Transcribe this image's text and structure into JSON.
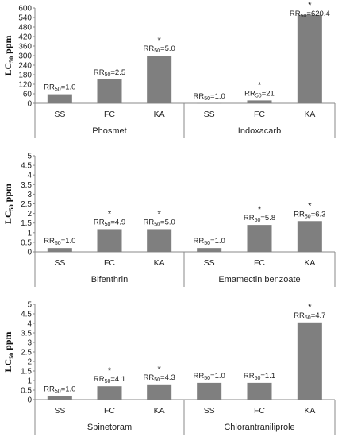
{
  "chart_data": [
    {
      "type": "bar",
      "ylabel": "LC50 ppm",
      "ylim": [
        0,
        600
      ],
      "yticks": [
        0,
        60,
        120,
        180,
        240,
        300,
        360,
        420,
        480,
        540,
        600
      ],
      "panels": [
        {
          "name": "Phosmet",
          "categories": [
            "SS",
            "FC",
            "KA"
          ],
          "values": [
            57,
            150,
            300
          ],
          "rr_labels": [
            "RR50=1.0",
            "RR50=2.5",
            "RR50=5.0"
          ],
          "significant": [
            false,
            false,
            true
          ]
        },
        {
          "name": "Indoxacarb",
          "categories": [
            "SS",
            "FC",
            "KA"
          ],
          "values": [
            1,
            18,
            556
          ],
          "rr_labels": [
            "RR50=1.0",
            "RR50=21",
            "RR50=620.4"
          ],
          "significant": [
            false,
            true,
            true
          ]
        }
      ]
    },
    {
      "type": "bar",
      "ylabel": "LC50 ppm",
      "ylim": [
        0,
        5
      ],
      "yticks": [
        0,
        0.5,
        1,
        1.5,
        2,
        2.5,
        3,
        3.5,
        4,
        4.5,
        5
      ],
      "panels": [
        {
          "name": "Bifenthrin",
          "categories": [
            "SS",
            "FC",
            "KA"
          ],
          "values": [
            0.2,
            1.18,
            1.18
          ],
          "rr_labels": [
            "RR50=1.0",
            "RR50=4.9",
            "RR50=5.0"
          ],
          "significant": [
            false,
            true,
            true
          ]
        },
        {
          "name": "Emamectin benzoate",
          "categories": [
            "SS",
            "FC",
            "KA"
          ],
          "values": [
            0.2,
            1.4,
            1.6
          ],
          "rr_labels": [
            "RR50=1.0",
            "RR50=5.8",
            "RR50=6.3"
          ],
          "significant": [
            false,
            true,
            true
          ]
        }
      ]
    },
    {
      "type": "bar",
      "ylabel": "LC50 ppm",
      "ylim": [
        0,
        5
      ],
      "yticks": [
        0,
        0.5,
        1,
        1.5,
        2,
        2.5,
        3,
        3.5,
        4,
        4.5,
        5
      ],
      "panels": [
        {
          "name": "Spinetoram",
          "categories": [
            "SS",
            "FC",
            "KA"
          ],
          "values": [
            0.18,
            0.7,
            0.8
          ],
          "rr_labels": [
            "RR50=1.0",
            "RR50=4.1",
            "RR50=4.3"
          ],
          "significant": [
            false,
            true,
            true
          ]
        },
        {
          "name": "Chlorantraniliprole",
          "categories": [
            "SS",
            "FC",
            "KA"
          ],
          "values": [
            0.88,
            0.88,
            4.05
          ],
          "rr_labels": [
            "RR50=1.0",
            "RR50=1.1",
            "RR50=4.7"
          ],
          "significant": [
            false,
            false,
            true
          ]
        }
      ]
    }
  ]
}
